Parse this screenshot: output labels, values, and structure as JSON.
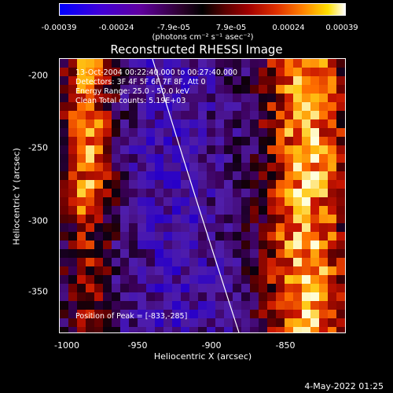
{
  "colorbar": {
    "ticks": [
      "-0.00039",
      "-0.00024",
      "-7.9e-05",
      "7.9e-05",
      "0.00024",
      "0.00039"
    ],
    "units": "(photons cm⁻² s⁻¹ asec⁻²)",
    "colors": [
      "#0000ff",
      "#000000",
      "#a00000",
      "#ff8000",
      "#ffffff"
    ]
  },
  "title": "Reconstructed RHESSI Image",
  "info": {
    "time": "13-Oct-2004 00:22:40.000 to 00:27:40.000",
    "detectors": "Detectors: 3F 4F 5F 6F 7F 8F, Att 0",
    "energy": "Energy Range: 25.0 - 50.0 keV",
    "clean": "Clean     Total counts: 5.19E+03",
    "peak": "Position of Peak = [-833,-285]"
  },
  "axes": {
    "xlabel": "Heliocentric X (arcsec)",
    "ylabel": "Heliocentric Y (arcsec)",
    "xticks": [
      "-1000",
      "-950",
      "-900",
      "-850"
    ],
    "yticks": [
      "-200",
      "-250",
      "-300",
      "-350"
    ]
  },
  "timestamp": "4-May-2022 01:25"
}
